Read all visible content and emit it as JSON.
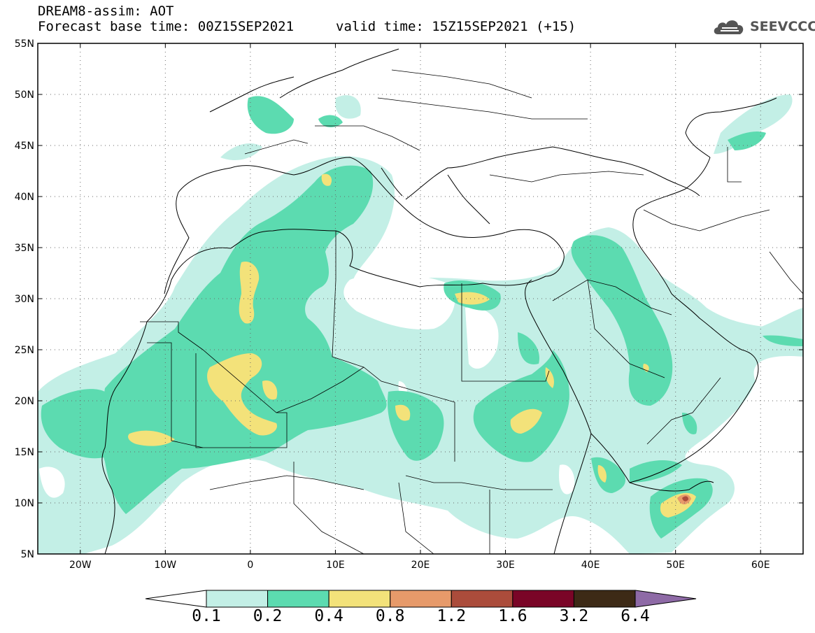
{
  "header": {
    "line1": "DREAM8-assim: AOT",
    "base_time": "Forecast base time: 00Z15SEP2021",
    "valid_time": "valid time: 15Z15SEP2021 (+15)"
  },
  "logo": {
    "text": "SEEVCCC",
    "icon": "cloud-icon"
  },
  "map": {
    "variable": "Aerosol Optical Thickness",
    "lon_range": [
      -25,
      65
    ],
    "lat_range": [
      5,
      55
    ],
    "lon_ticks": [
      {
        "value": -20,
        "label": "20W"
      },
      {
        "value": -10,
        "label": "10W"
      },
      {
        "value": 0,
        "label": "0"
      },
      {
        "value": 10,
        "label": "10E"
      },
      {
        "value": 20,
        "label": "20E"
      },
      {
        "value": 30,
        "label": "30E"
      },
      {
        "value": 40,
        "label": "40E"
      },
      {
        "value": 50,
        "label": "50E"
      },
      {
        "value": 60,
        "label": "60E"
      }
    ],
    "lat_ticks": [
      {
        "value": 5,
        "label": "5N"
      },
      {
        "value": 10,
        "label": "10N"
      },
      {
        "value": 15,
        "label": "15N"
      },
      {
        "value": 20,
        "label": "20N"
      },
      {
        "value": 25,
        "label": "25N"
      },
      {
        "value": 30,
        "label": "30N"
      },
      {
        "value": 35,
        "label": "35N"
      },
      {
        "value": 40,
        "label": "40N"
      },
      {
        "value": 45,
        "label": "45N"
      },
      {
        "value": 50,
        "label": "50N"
      },
      {
        "value": 55,
        "label": "55N"
      }
    ],
    "gridlines": "dotted"
  },
  "colorbar": {
    "levels": [
      "0.1",
      "0.2",
      "0.4",
      "0.8",
      "1.2",
      "1.6",
      "3.2",
      "6.4"
    ],
    "colors": [
      "#ffffff",
      "#c3efe6",
      "#5cdbb0",
      "#f3e27a",
      "#e79a6a",
      "#ab4c3b",
      "#7a0527",
      "#3d2a16",
      "#8e6aa6"
    ]
  }
}
